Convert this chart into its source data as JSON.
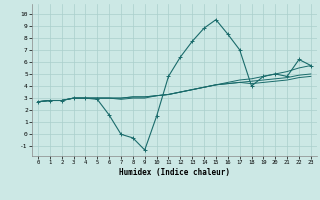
{
  "title": "",
  "xlabel": "Humidex (Indice chaleur)",
  "ylabel": "",
  "xlim": [
    -0.5,
    23.5
  ],
  "ylim": [
    -1.8,
    10.8
  ],
  "xticks": [
    0,
    1,
    2,
    3,
    4,
    5,
    6,
    7,
    8,
    9,
    10,
    11,
    12,
    13,
    14,
    15,
    16,
    17,
    18,
    19,
    20,
    21,
    22,
    23
  ],
  "yticks": [
    -1,
    0,
    1,
    2,
    3,
    4,
    5,
    6,
    7,
    8,
    9,
    10
  ],
  "bg_color": "#cce8e5",
  "line_color": "#1a6b6b",
  "grid_color": "#aacfcc",
  "line1_x": [
    0,
    1,
    2,
    3,
    4,
    5,
    6,
    7,
    8,
    9,
    10,
    11,
    12,
    13,
    14,
    15,
    16,
    17,
    18,
    19,
    20,
    21,
    22,
    23
  ],
  "line1_y": [
    2.7,
    2.8,
    2.8,
    3.0,
    3.0,
    2.9,
    1.6,
    0.0,
    -0.3,
    -1.3,
    1.5,
    4.8,
    6.4,
    7.7,
    8.8,
    9.5,
    8.3,
    7.0,
    4.0,
    4.8,
    5.0,
    4.8,
    6.2,
    5.7
  ],
  "line2_x": [
    0,
    1,
    2,
    3,
    4,
    5,
    6,
    7,
    8,
    9,
    10,
    11,
    12,
    13,
    14,
    15,
    16,
    17,
    18,
    19,
    20,
    21,
    22,
    23
  ],
  "line2_y": [
    2.7,
    2.8,
    2.8,
    3.0,
    3.0,
    3.0,
    3.0,
    3.0,
    3.1,
    3.1,
    3.2,
    3.3,
    3.5,
    3.7,
    3.9,
    4.1,
    4.3,
    4.5,
    4.6,
    4.8,
    5.0,
    5.2,
    5.5,
    5.7
  ],
  "line3_x": [
    0,
    1,
    2,
    3,
    4,
    5,
    6,
    7,
    8,
    9,
    10,
    11,
    12,
    13,
    14,
    15,
    16,
    17,
    18,
    19,
    20,
    21,
    22,
    23
  ],
  "line3_y": [
    2.7,
    2.8,
    2.8,
    3.0,
    3.0,
    3.0,
    3.0,
    3.0,
    3.1,
    3.1,
    3.2,
    3.3,
    3.5,
    3.7,
    3.9,
    4.1,
    4.2,
    4.3,
    4.4,
    4.5,
    4.6,
    4.7,
    4.9,
    5.0
  ],
  "line4_x": [
    0,
    1,
    2,
    3,
    4,
    5,
    6,
    7,
    8,
    9,
    10,
    11,
    12,
    13,
    14,
    15,
    16,
    17,
    18,
    19,
    20,
    21,
    22,
    23
  ],
  "line4_y": [
    2.7,
    2.8,
    2.8,
    3.0,
    3.0,
    3.0,
    3.0,
    2.9,
    3.0,
    3.0,
    3.2,
    3.3,
    3.5,
    3.7,
    3.9,
    4.1,
    4.2,
    4.3,
    4.2,
    4.3,
    4.4,
    4.5,
    4.7,
    4.8
  ]
}
